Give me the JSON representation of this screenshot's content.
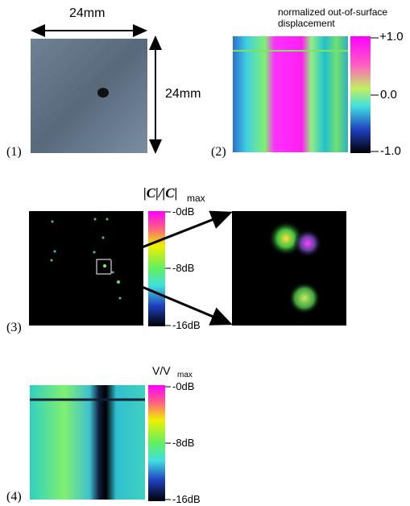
{
  "panel1": {
    "width_label": "24mm",
    "height_label": "24mm",
    "label": "(1)"
  },
  "panel2": {
    "colorbar_title": "normalized out-of-surface displacement",
    "colorbar_labels": [
      "+1.0",
      "0.0",
      "-1.0"
    ],
    "label": "(2)"
  },
  "panel3": {
    "colorbar_title": "|C|/|C|",
    "colorbar_title_subscript": "max",
    "colorbar_labels": [
      "-0dB",
      "-8dB",
      "-16dB"
    ],
    "label": "(3)"
  },
  "panel4": {
    "colorbar_title": "V/V",
    "colorbar_title_subscript": "max",
    "colorbar_labels": [
      "-0dB",
      "-8dB",
      "-16dB"
    ],
    "label": "(4)"
  }
}
